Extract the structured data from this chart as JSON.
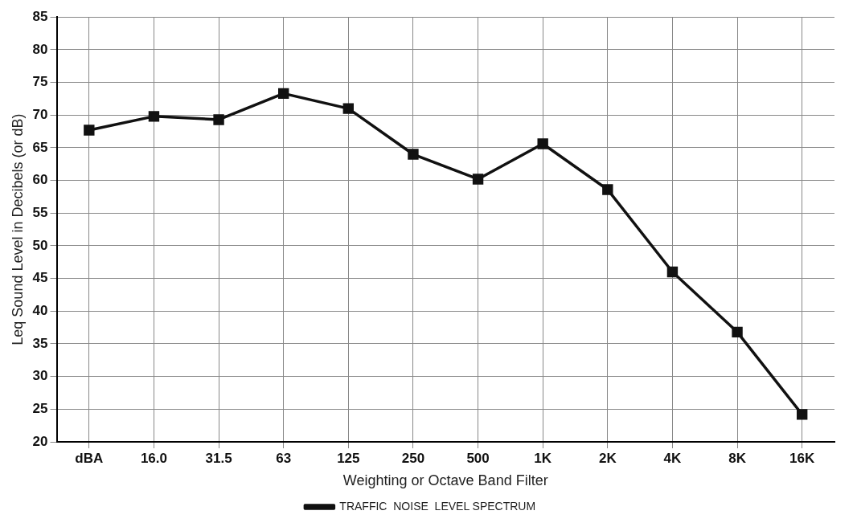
{
  "chart_data": {
    "type": "line",
    "xlabel": "Weighting or Octave Band Filter",
    "ylabel": "Leq Sound Level in Decibels (or dB)",
    "categories": [
      "dBA",
      "16.0",
      "31.5",
      "63",
      "125",
      "250",
      "500",
      "1K",
      "2K",
      "4K",
      "8K",
      "16K"
    ],
    "series": [
      {
        "name": "TRAFFIC  NOISE  LEVEL SPECTRUM",
        "color": "#111111",
        "values": [
          67.7,
          69.8,
          69.3,
          73.3,
          71.0,
          64.0,
          60.2,
          65.6,
          58.6,
          46.0,
          36.8,
          24.2
        ]
      }
    ],
    "ylim": [
      20,
      85
    ],
    "yticks": [
      20,
      25,
      30,
      35,
      40,
      45,
      50,
      55,
      60,
      65,
      70,
      75,
      80,
      85
    ],
    "grid": true,
    "legend": "bottom",
    "marker": "square",
    "line_style": "solid"
  }
}
